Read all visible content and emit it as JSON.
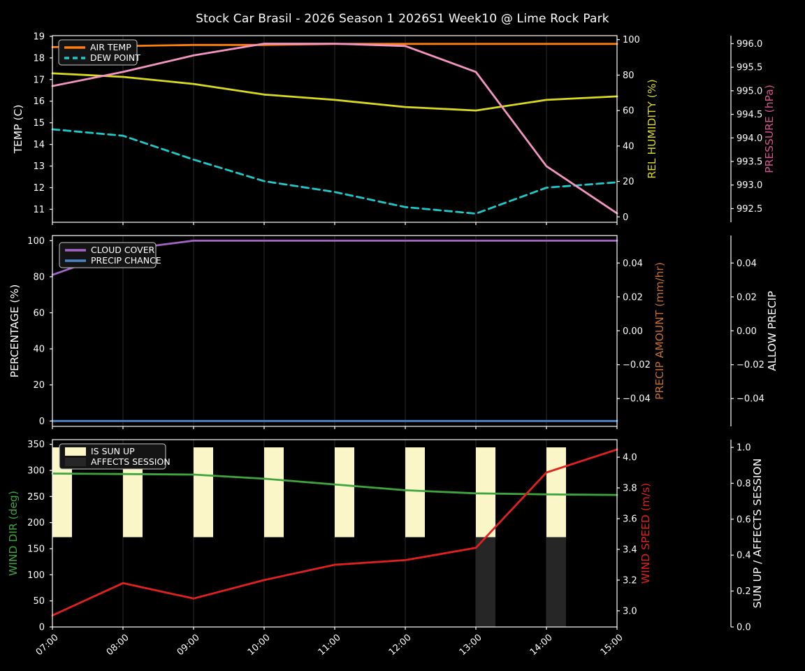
{
  "title": "Stock Car Brasil - 2026 Season 1 2026S1 Week10 @ Lime Rock Park",
  "style": {
    "background": "#000000",
    "grid_color": "#2b2b2b",
    "spine_color": "#ffffff",
    "text_color": "#ffffff",
    "legend_bg": "#141414",
    "legend_border": "#cccccc"
  },
  "x_axis": {
    "labels": [
      "07:00",
      "08:00",
      "09:00",
      "10:00",
      "11:00",
      "12:00",
      "13:00",
      "14:00",
      "15:00"
    ],
    "hours": [
      7,
      8,
      9,
      10,
      11,
      12,
      13,
      14,
      15
    ]
  },
  "chart_data": [
    {
      "type": "line",
      "name": "temperature",
      "categories": [
        "07:00",
        "08:00",
        "09:00",
        "10:00",
        "11:00",
        "12:00",
        "13:00",
        "14:00",
        "15:00"
      ],
      "axes": {
        "left": {
          "id": "temp",
          "label": "TEMP (C)",
          "color": "#ffffff",
          "ticks": [
            11,
            12,
            13,
            14,
            15,
            16,
            17,
            18,
            19
          ],
          "tick_labels": [
            "11",
            "12",
            "13",
            "14",
            "15",
            "16",
            "17",
            "18",
            "19"
          ],
          "range": [
            10.4,
            19.03
          ]
        },
        "right": [
          {
            "id": "humidity",
            "label": "REL HUMIDITY (%)",
            "color": "#d9d921",
            "ticks": [
              0,
              20,
              40,
              60,
              80,
              100
            ],
            "tick_labels": [
              "0",
              "20",
              "40",
              "60",
              "80",
              "100"
            ],
            "range": [
              -3.04,
              102.25
            ]
          },
          {
            "id": "pressure",
            "label": "PRESSURE (hPa)",
            "color": "#d5568f",
            "ticks": [
              992.5,
              993.0,
              993.5,
              994.0,
              994.5,
              995.0,
              995.5,
              996.0
            ],
            "tick_labels": [
              "992.5",
              "993.0",
              "993.5",
              "994.0",
              "994.5",
              "995.0",
              "995.5",
              "996.0"
            ],
            "range": [
              992.21,
              996.17
            ]
          }
        ]
      },
      "legend": [
        {
          "label": "AIR TEMP",
          "swatch": "line",
          "color": "#ff7f0e",
          "dash": false
        },
        {
          "label": "DEW POINT",
          "swatch": "line",
          "color": "#1fc9c9",
          "dash": true
        }
      ],
      "series": [
        {
          "name": "air-temp",
          "axis": "temp",
          "color": "#ff7f0e",
          "dash": false,
          "values": [
            18.5,
            18.55,
            18.6,
            18.6,
            18.65,
            18.65,
            18.65,
            18.65,
            18.65
          ]
        },
        {
          "name": "dew-point",
          "axis": "temp",
          "color": "#1fc9c9",
          "dash": true,
          "values": [
            14.7,
            14.4,
            13.3,
            12.3,
            11.8,
            11.1,
            10.8,
            12.0,
            12.25
          ]
        },
        {
          "name": "rel-humidity",
          "axis": "humidity",
          "color": "#d9d921",
          "dash": false,
          "values": [
            81,
            79,
            75,
            69,
            66,
            62,
            60,
            66,
            68
          ]
        },
        {
          "name": "pressure",
          "axis": "pressure",
          "color": "#f494c0",
          "dash": false,
          "values": [
            995.1,
            995.4,
            995.75,
            996.0,
            996.0,
            995.95,
            995.4,
            993.4,
            992.4
          ]
        }
      ]
    },
    {
      "type": "line",
      "name": "precipitation",
      "categories": [
        "07:00",
        "08:00",
        "09:00",
        "10:00",
        "11:00",
        "12:00",
        "13:00",
        "14:00",
        "15:00"
      ],
      "axes": {
        "left": {
          "id": "pct",
          "label": "PERCENTAGE (%)",
          "color": "#ffffff",
          "ticks": [
            0,
            20,
            40,
            60,
            80,
            100
          ],
          "tick_labels": [
            "0",
            "20",
            "40",
            "60",
            "80",
            "100"
          ],
          "range": [
            -2.98,
            102.83
          ]
        },
        "right": [
          {
            "id": "amount",
            "label": "PRECIP AMOUNT (mm/hr)",
            "color": "#c46f2d",
            "ticks": [
              -0.04,
              -0.02,
              0,
              0.02,
              0.04
            ],
            "tick_labels": [
              "−0.04",
              "−0.02",
              "0.00",
              "0.02",
              "0.04"
            ],
            "range": [
              -0.0564,
              0.0562
            ]
          },
          {
            "id": "allow",
            "label": "ALLOW PRECIP",
            "color": "#ffffff",
            "ticks": [
              -0.04,
              -0.02,
              0,
              0.02,
              0.04
            ],
            "tick_labels": [
              "−0.04",
              "−0.02",
              "0.00",
              "0.02",
              "0.04"
            ],
            "range": [
              -0.0564,
              0.0562
            ]
          }
        ]
      },
      "legend": [
        {
          "label": "CLOUD COVER",
          "swatch": "line",
          "color": "#a264c2",
          "dash": false
        },
        {
          "label": "PRECIP CHANCE",
          "swatch": "line",
          "color": "#4a86c5",
          "dash": false
        }
      ],
      "series": [
        {
          "name": "cloud-cover",
          "axis": "pct",
          "color": "#a264c2",
          "dash": false,
          "values": [
            81,
            95,
            100,
            100,
            100,
            100,
            100,
            100,
            100
          ]
        },
        {
          "name": "precip-chance",
          "axis": "pct",
          "color": "#4a86c5",
          "dash": false,
          "values": [
            0,
            0,
            0,
            0,
            0,
            0,
            0,
            0,
            0
          ]
        }
      ]
    },
    {
      "type": "mixed",
      "name": "wind",
      "categories": [
        "07:00",
        "08:00",
        "09:00",
        "10:00",
        "11:00",
        "12:00",
        "13:00",
        "14:00",
        "15:00"
      ],
      "axes": {
        "left": {
          "id": "dir",
          "label": "WIND DIR (deg)",
          "color": "#3fa63f",
          "ticks": [
            0,
            50,
            100,
            150,
            200,
            250,
            300,
            350
          ],
          "tick_labels": [
            "0",
            "50",
            "100",
            "150",
            "200",
            "250",
            "300",
            "350"
          ],
          "range": [
            0,
            358.9
          ]
        },
        "right": [
          {
            "id": "speed",
            "label": "WIND SPEED (m/s)",
            "color": "#e12120",
            "ticks": [
              3.0,
              3.2,
              3.4,
              3.6,
              3.8,
              4.0
            ],
            "tick_labels": [
              "3.0",
              "3.2",
              "3.4",
              "3.6",
              "3.8",
              "4.0"
            ],
            "range": [
              2.895,
              4.114
            ]
          },
          {
            "id": "sun",
            "label": "SUN UP / AFFECTS SESSION",
            "color": "#ffffff",
            "ticks": [
              0,
              0.2,
              0.4,
              0.6,
              0.8,
              1.0
            ],
            "tick_labels": [
              "0.0",
              "0.2",
              "0.4",
              "0.6",
              "0.8",
              "1.0"
            ],
            "range": [
              0,
              1.043
            ]
          }
        ]
      },
      "legend": [
        {
          "label": "IS SUN UP",
          "swatch": "patch",
          "color": "#faf6c8",
          "dash": false
        },
        {
          "label": "AFFECTS SESSION",
          "swatch": "patch",
          "color": "#262626",
          "dash": false
        }
      ],
      "series": [
        {
          "name": "is-sun-up",
          "type": "bar",
          "axis": "sun",
          "y0": 0.5,
          "y1": 1.0,
          "color": "#faf6c8",
          "values": [
            1,
            1,
            1,
            1,
            1,
            1,
            1,
            1,
            0
          ]
        },
        {
          "name": "affects-session",
          "type": "bar",
          "axis": "sun",
          "y0": 0.0,
          "y1": 0.5,
          "color": "#262626",
          "values": [
            0,
            0,
            0,
            0,
            0,
            0,
            1,
            1,
            0
          ]
        },
        {
          "name": "wind-dir",
          "axis": "dir",
          "color": "#3fa63f",
          "dash": false,
          "values": [
            294,
            293,
            292,
            284,
            273,
            262,
            256,
            254,
            253
          ]
        },
        {
          "name": "wind-speed",
          "axis": "speed",
          "color": "#e12120",
          "dash": false,
          "values": [
            2.97,
            3.18,
            3.08,
            3.2,
            3.3,
            3.33,
            3.41,
            3.9,
            4.05
          ]
        }
      ]
    }
  ]
}
